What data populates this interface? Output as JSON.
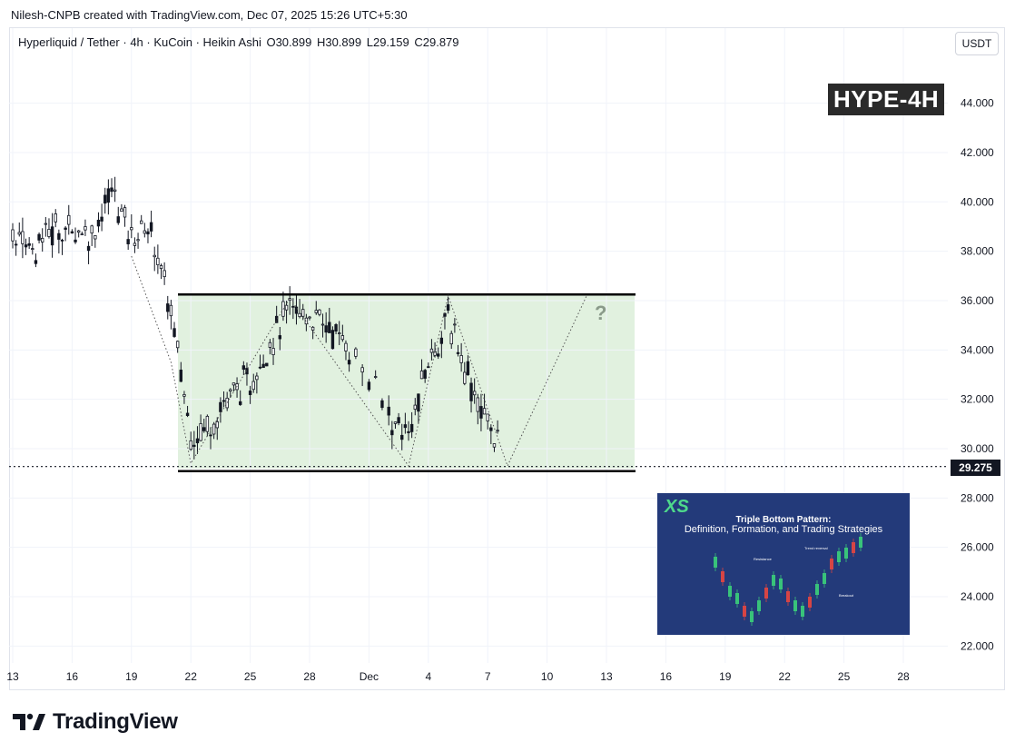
{
  "header": {
    "credit": "Nilesh-CNPB created with TradingView.com, Dec 07, 2025 15:26 UTC+5:30"
  },
  "legend": {
    "symbol": "Hyperliquid / Tether · 4h · KuCoin · Heikin Ashi",
    "open": "O30.899",
    "high": "H30.899",
    "low": "L29.159",
    "close": "C29.879"
  },
  "currency_button": "USDT",
  "tag": "HYPE-4H",
  "question_mark": "?",
  "thumbnail": {
    "logo": "XS",
    "title": "Triple Bottom Pattern:",
    "subtitle": "Definition, Formation, and Trading Strategies",
    "annotations": [
      "Resistance",
      "Trend reversal",
      "Breakout"
    ]
  },
  "brand": {
    "name": "TradingView"
  },
  "colors": {
    "up": "#131722",
    "down": "#131722",
    "zone_fill": "#e1f1df",
    "accent_green": "#4ed88b",
    "thumb_bg": "#233a7a"
  },
  "chart_data": {
    "type": "candlestick",
    "title": "",
    "xlabel": "",
    "ylabel": "",
    "ylim": [
      21.3,
      46.7
    ],
    "y_ticks": [
      "22.000",
      "24.000",
      "26.000",
      "28.000",
      "30.000",
      "32.000",
      "34.000",
      "36.000",
      "38.000",
      "40.000",
      "42.000",
      "44.000"
    ],
    "x_ticks": [
      "13",
      "16",
      "19",
      "22",
      "25",
      "28",
      "Dec",
      "4",
      "7",
      "10",
      "13",
      "16",
      "19",
      "22",
      "25",
      "28"
    ],
    "current_price": "29.275",
    "resistance_level": 36.25,
    "support_level": 29.2,
    "range_zone": {
      "from": "Nov 21",
      "to": "Dec 14",
      "low": 29.2,
      "high": 36.25
    },
    "pattern": "triple bottom (projected)",
    "path_points": [
      {
        "date": "Nov 19",
        "price": 37.8
      },
      {
        "date": "Nov 21",
        "price": 33.5
      },
      {
        "date": "Nov 22",
        "price": 29.4
      },
      {
        "date": "Nov 27",
        "price": 36.1
      },
      {
        "date": "Dec 2",
        "price": 29.3
      },
      {
        "date": "Dec 4",
        "price": 36.2
      },
      {
        "date": "Dec 7",
        "price": 29.3
      },
      {
        "date": "Dec 11",
        "price": 36.2
      }
    ],
    "candles_approx": [
      {
        "date": "Nov 13",
        "price": 38.7
      },
      {
        "date": "Nov 14",
        "price": 38.2
      },
      {
        "date": "Nov 15",
        "price": 38.9
      },
      {
        "date": "Nov 16",
        "price": 38.9
      },
      {
        "date": "Nov 17",
        "price": 38.7
      },
      {
        "date": "Nov 18",
        "price": 40.5
      },
      {
        "date": "Nov 19",
        "price": 38.6
      },
      {
        "date": "Nov 20",
        "price": 38.9
      },
      {
        "date": "Nov 21",
        "price": 35.5
      },
      {
        "date": "Nov 22",
        "price": 30.5
      },
      {
        "date": "Nov 23",
        "price": 31.0
      },
      {
        "date": "Nov 24",
        "price": 32.3
      },
      {
        "date": "Nov 25",
        "price": 32.6
      },
      {
        "date": "Nov 26",
        "price": 34.3
      },
      {
        "date": "Nov 27",
        "price": 35.6
      },
      {
        "date": "Nov 28",
        "price": 35.4
      },
      {
        "date": "Nov 29",
        "price": 35.0
      },
      {
        "date": "Nov 30",
        "price": 34.0
      },
      {
        "date": "Dec 1",
        "price": 31.5
      },
      {
        "date": "Dec 2",
        "price": 30.5
      },
      {
        "date": "Dec 3",
        "price": 33.5
      },
      {
        "date": "Dec 4",
        "price": 35.3
      },
      {
        "date": "Dec 5",
        "price": 33.0
      },
      {
        "date": "Dec 6",
        "price": 31.0
      },
      {
        "date": "Dec 7",
        "price": 29.9
      }
    ]
  }
}
